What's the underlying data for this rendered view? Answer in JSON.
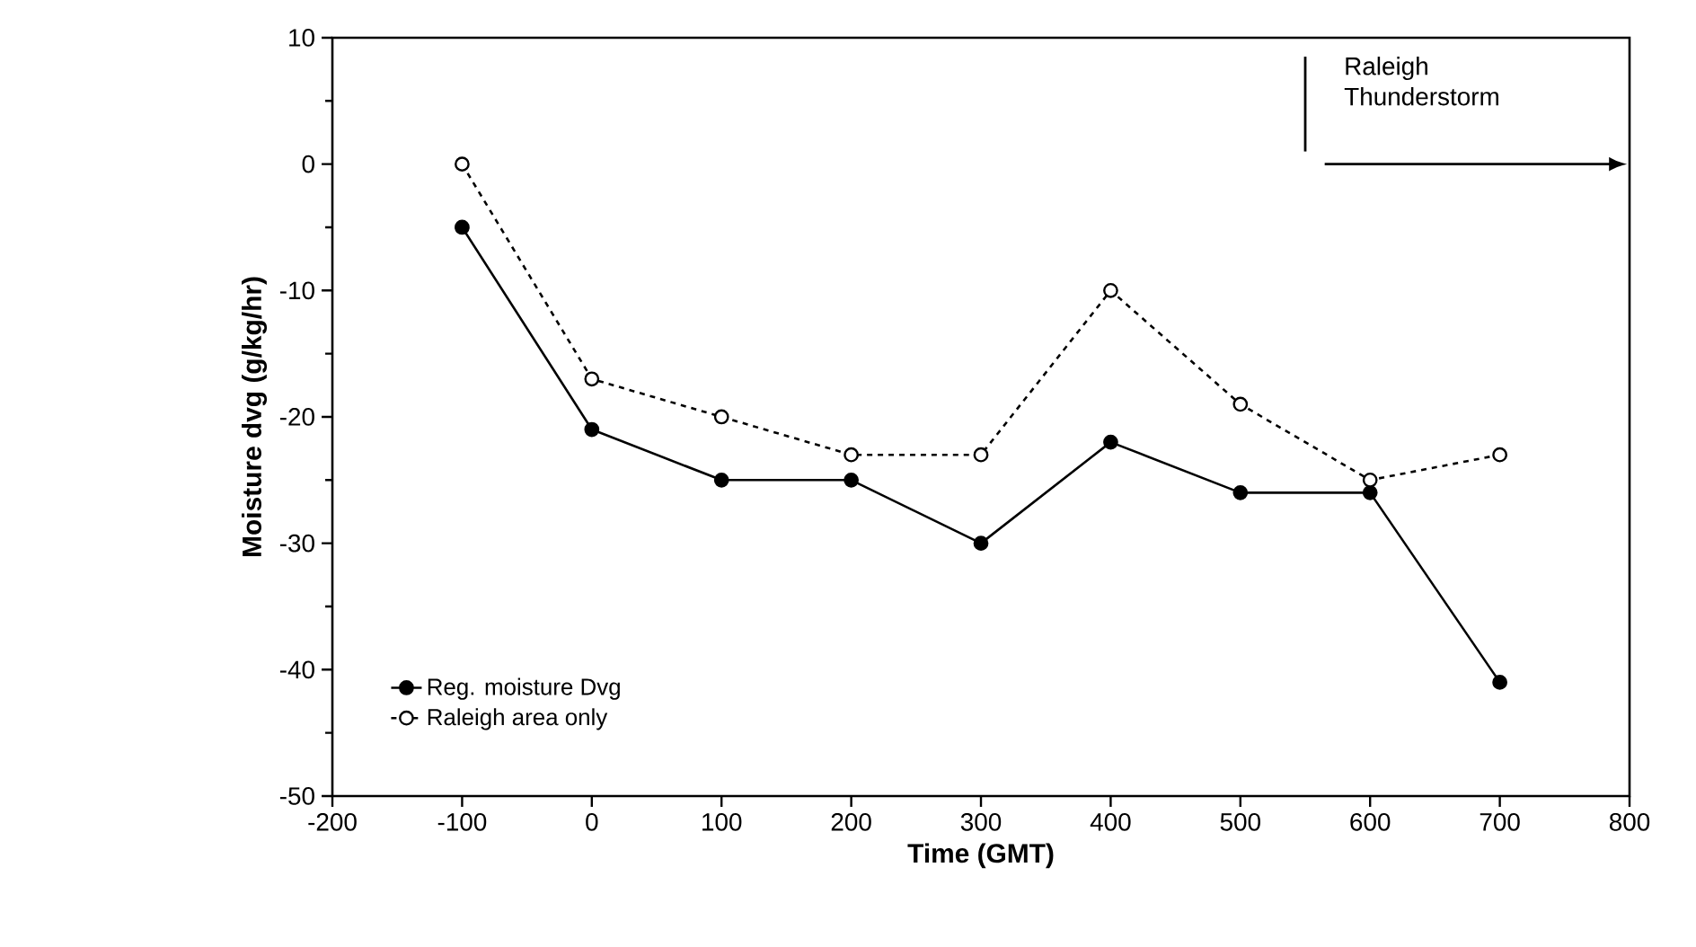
{
  "chart_data": {
    "type": "line",
    "xlabel": "Time (GMT)",
    "ylabel": "Moisture   dvg   (g/kg/hr)",
    "x": [
      -100,
      0,
      100,
      200,
      300,
      400,
      500,
      600,
      700
    ],
    "series": [
      {
        "name": "Reg. moisture Dvg",
        "color": "#000000",
        "line_style": "solid",
        "values": [
          -5,
          -21,
          -25,
          -25,
          -30,
          -22,
          -26,
          -26,
          -41
        ]
      },
      {
        "name": "Raleigh area only",
        "color": "#000000",
        "line_style": "dotted",
        "values": [
          0,
          -17,
          -20,
          -23,
          -23,
          -10,
          -19,
          -25,
          -23
        ]
      }
    ],
    "xlim": [
      -200,
      800
    ],
    "xticks": [
      -200,
      -100,
      0,
      100,
      200,
      300,
      400,
      500,
      600,
      700,
      800
    ],
    "ylim": [
      -50,
      10
    ],
    "yticks": [
      -50,
      -40,
      -30,
      -20,
      -10,
      0,
      10
    ],
    "annotations": [
      "Raleigh Thunderstorm"
    ],
    "marker": "circle",
    "grid": false,
    "legend": "bottom left"
  }
}
